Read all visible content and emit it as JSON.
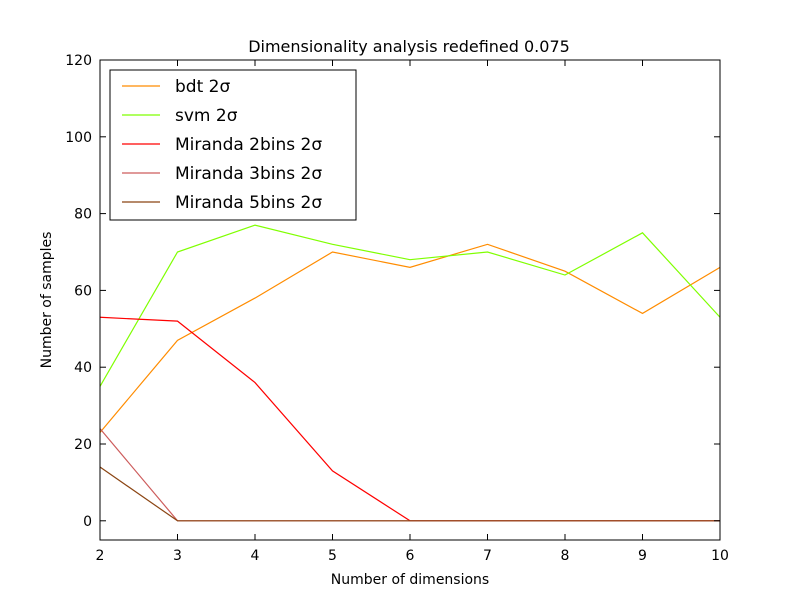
{
  "chart_data": {
    "type": "line",
    "title": "Dimensionality analysis redefined 0.075",
    "xlabel": "Number of dimensions",
    "ylabel": "Number of samples",
    "xlim": [
      2,
      10
    ],
    "ylim": [
      -5,
      120
    ],
    "xticks": [
      2,
      3,
      4,
      5,
      6,
      7,
      8,
      9,
      10
    ],
    "yticks": [
      0,
      20,
      40,
      60,
      80,
      100,
      120
    ],
    "grid": false,
    "legend_position": "top-left",
    "x": [
      2,
      3,
      4,
      5,
      6,
      7,
      8,
      9,
      10
    ],
    "series": [
      {
        "name": "bdt 2σ",
        "color": "#ff8c00",
        "values": [
          23,
          47,
          58,
          70,
          66,
          72,
          65,
          54,
          66
        ]
      },
      {
        "name": "svm 2σ",
        "color": "#7fff00",
        "values": [
          35,
          70,
          77,
          72,
          68,
          70,
          64,
          75,
          53
        ]
      },
      {
        "name": "Miranda 2bins 2σ",
        "color": "#ff0000",
        "values": [
          53,
          52,
          36,
          13,
          0,
          0,
          0,
          0,
          0
        ]
      },
      {
        "name": "Miranda 3bins 2σ",
        "color": "#cd5c5c",
        "values": [
          24,
          0,
          0,
          0,
          0,
          0,
          0,
          0,
          0
        ]
      },
      {
        "name": "Miranda 5bins 2σ",
        "color": "#8b4513",
        "values": [
          14,
          0,
          0,
          0,
          0,
          0,
          0,
          0,
          0
        ]
      }
    ]
  }
}
